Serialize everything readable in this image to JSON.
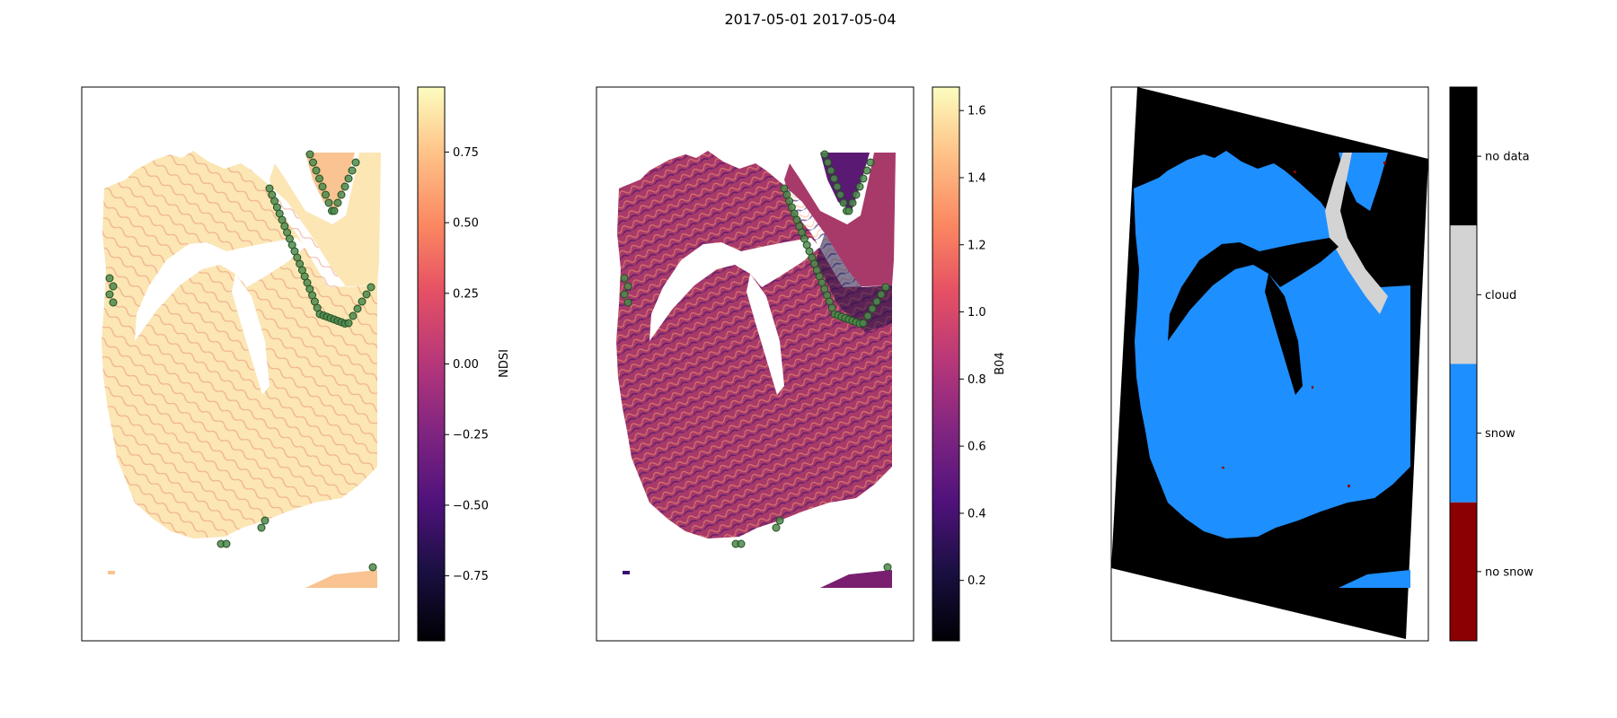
{
  "figure": {
    "title": "2017-05-01 2017-05-04"
  },
  "colors": {
    "land_light": "#fbe6b4",
    "land_mid": "#f9c392",
    "land_ridge": "#e5705a",
    "b04_base": "#a83a6a",
    "b04_dark": "#3b0f6f",
    "b04_bright": "#fca36f",
    "marker_fill": "#4e8a4e",
    "marker_edge": "#1f4d1f",
    "snow": "#1e8fff",
    "cloud": "#d3d3d3",
    "no_data": "#000000",
    "no_snow": "#8b0000"
  },
  "chart_data": [
    {
      "type": "heatmap",
      "name": "NDSI map",
      "colormap": "magma",
      "colorbar": {
        "label": "NDSI",
        "range": [
          -0.98,
          0.98
        ],
        "ticks": [
          -0.75,
          -0.5,
          -0.25,
          0.0,
          0.25,
          0.5,
          0.75
        ],
        "tick_labels": [
          "−0.75",
          "−0.50",
          "−0.25",
          "0.00",
          "0.25",
          "0.50",
          "0.75"
        ]
      },
      "overlay": "green circular markers along coastline"
    },
    {
      "type": "heatmap",
      "name": "B04 map",
      "colormap": "magma",
      "colorbar": {
        "label": "B04",
        "range": [
          0.02,
          1.67
        ],
        "ticks": [
          0.2,
          0.4,
          0.6,
          0.8,
          1.0,
          1.2,
          1.4,
          1.6
        ],
        "tick_labels": [
          "0.2",
          "0.4",
          "0.6",
          "0.8",
          "1.0",
          "1.2",
          "1.4",
          "1.6"
        ]
      },
      "overlay": "green circular markers along coastline"
    },
    {
      "type": "heatmap",
      "name": "classification map",
      "colorbar": {
        "label": "",
        "categories": [
          "no snow",
          "snow",
          "cloud",
          "no data"
        ]
      }
    }
  ]
}
